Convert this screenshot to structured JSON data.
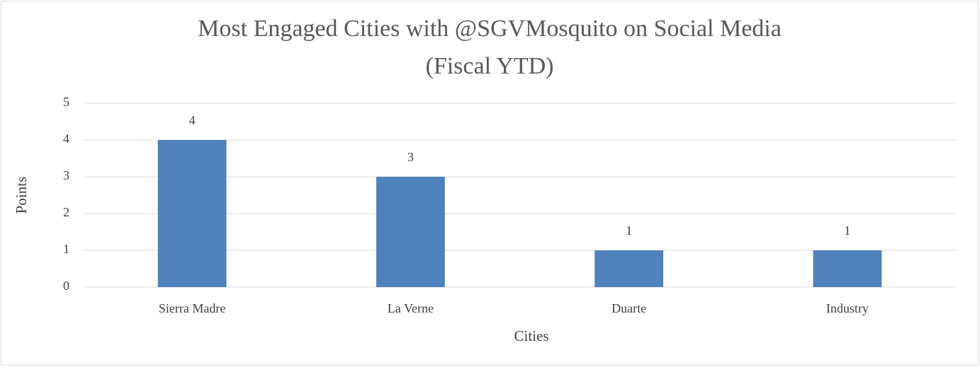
{
  "chart_data": {
    "type": "bar",
    "title": [
      "Most Engaged Cities with @SGVMosquito on Social Media",
      "(Fiscal YTD)"
    ],
    "categories": [
      "Sierra Madre",
      "La Verne",
      "Duarte",
      "Industry"
    ],
    "values": [
      4,
      3,
      1,
      1
    ],
    "color": "#4f81bd",
    "x_label": "Cities",
    "y_label": "Points",
    "ylim": [
      0,
      5
    ],
    "yticks": [
      0,
      1,
      2,
      3,
      4,
      5
    ],
    "grid": true,
    "data_labels": true
  }
}
